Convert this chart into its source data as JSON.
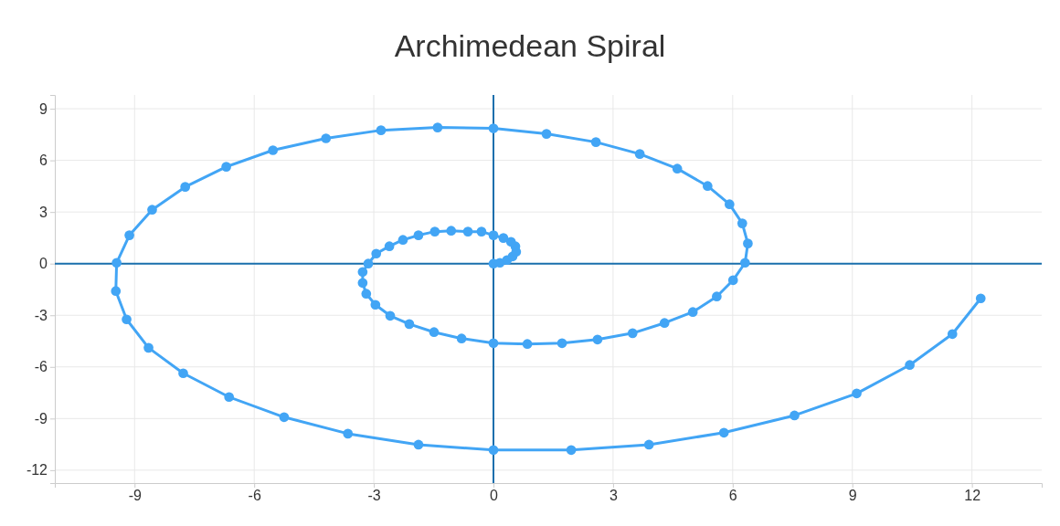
{
  "chart_data": {
    "type": "line",
    "title": "Archimedean Spiral",
    "marker": "circle",
    "line_style": "solid",
    "grid": true,
    "xlim": [
      -11,
      13.75
    ],
    "xticks": [
      -9,
      -6,
      -3,
      0,
      3,
      6,
      9,
      12
    ],
    "ylim": [
      -12.75,
      9.8
    ],
    "yticks": [
      9,
      6,
      3,
      0,
      -3,
      -6,
      -9,
      -12
    ],
    "series": [
      {
        "color": "#42a5f5",
        "x": [
          0,
          0.16,
          0.34,
          0.48,
          0.57,
          0.55,
          0.44,
          0.25,
          0,
          -0.3,
          -0.64,
          -1.06,
          -1.47,
          -1.88,
          -2.27,
          -2.61,
          -2.94,
          -3.14,
          -3.28,
          -3.28,
          -3.19,
          -2.96,
          -2.59,
          -2.11,
          -1.49,
          -0.8,
          0,
          0.85,
          1.72,
          2.61,
          3.49,
          4.29,
          5,
          5.6,
          6.01,
          6.31,
          6.38,
          6.24,
          5.92,
          5.37,
          4.61,
          3.67,
          2.57,
          1.33,
          0,
          -1.4,
          -2.82,
          -4.2,
          -5.53,
          -6.7,
          -7.73,
          -8.56,
          -9.13,
          -9.45,
          -9.47,
          -9.2,
          -8.65,
          -7.78,
          -6.63,
          -5.25,
          -3.65,
          -1.88,
          0,
          1.95,
          3.9,
          5.78,
          7.55,
          9.11,
          10.44,
          11.51,
          12.22
        ],
        "values": [
          0,
          0.05,
          0.21,
          0.42,
          0.69,
          1.01,
          1.27,
          1.49,
          1.65,
          1.86,
          1.86,
          1.91,
          1.86,
          1.65,
          1.38,
          1.01,
          0.58,
          0,
          -0.48,
          -1.12,
          -1.75,
          -2.39,
          -3.03,
          -3.51,
          -3.98,
          -4.35,
          -4.62,
          -4.67,
          -4.62,
          -4.41,
          -4.04,
          -3.45,
          -2.81,
          -1.91,
          -0.96,
          0.05,
          1.17,
          2.34,
          3.45,
          4.51,
          5.52,
          6.37,
          7.06,
          7.54,
          7.86,
          7.91,
          7.75,
          7.28,
          6.59,
          5.63,
          4.46,
          3.13,
          1.65,
          0.05,
          -1.59,
          -3.24,
          -4.89,
          -6.37,
          -7.75,
          -8.92,
          -9.88,
          -10.52,
          -10.83,
          -10.83,
          -10.52,
          -9.82,
          -8.82,
          -7.54,
          -5.89,
          -4.09,
          -2.02
        ]
      }
    ]
  }
}
